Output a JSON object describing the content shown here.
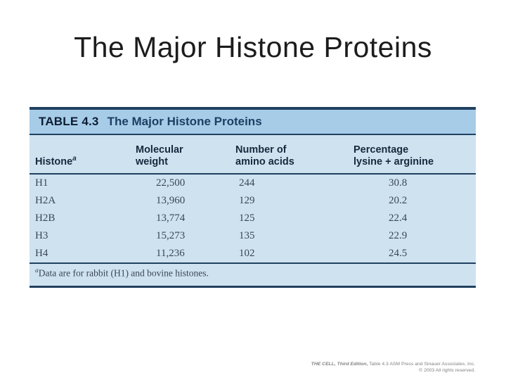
{
  "slide": {
    "title": "The Major Histone Proteins"
  },
  "table": {
    "label": "TABLE 4.3",
    "title": "The Major Histone Proteins",
    "columns": [
      {
        "lines": [
          "Histone"
        ],
        "superscript": "a"
      },
      {
        "lines": [
          "Molecular",
          "weight"
        ]
      },
      {
        "lines": [
          "Number of",
          "amino acids"
        ]
      },
      {
        "lines": [
          "Percentage",
          "lysine + arginine"
        ]
      }
    ],
    "rows": [
      {
        "cells": [
          "H1",
          "22,500",
          "244",
          "30.8"
        ]
      },
      {
        "cells": [
          "H2A",
          "13,960",
          "129",
          "20.2"
        ]
      },
      {
        "cells": [
          "H2B",
          "13,774",
          "125",
          "22.4"
        ]
      },
      {
        "cells": [
          "H3",
          "15,273",
          "135",
          "22.9"
        ]
      },
      {
        "cells": [
          "H4",
          "11,236",
          "102",
          "24.5"
        ]
      }
    ],
    "footnote": {
      "superscript": "a",
      "text": "Data are for rabbit (H1) and bovine histones."
    }
  },
  "credit": {
    "book": "THE CELL, Third Edition,",
    "rest": " Table 4.3  ASM Press and Sinauer Associates, Inc.",
    "line2": "© 2003 All rights reserved."
  },
  "colors": {
    "table_title_bg": "#a6cce8",
    "table_body_bg": "#cfe2f0",
    "rule": "#20415f",
    "header_text": "#16293d",
    "body_text": "#3a4657",
    "credit_text": "#828282"
  }
}
